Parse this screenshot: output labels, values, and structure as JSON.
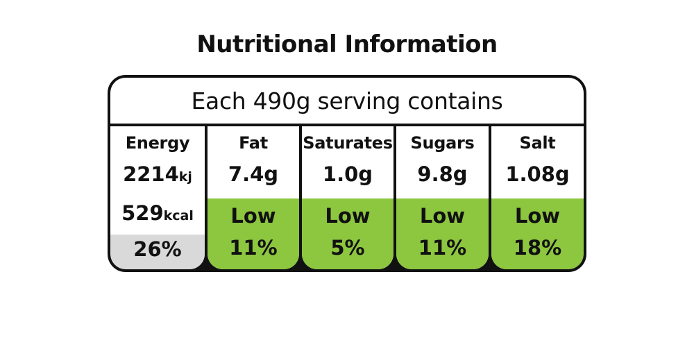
{
  "title": "Nutritional Information",
  "serving_header": "Each 490g serving contains",
  "colors": {
    "low": "#8dc63f",
    "energy_ri_bg": "#d9d9d9",
    "border": "#111111"
  },
  "energy": {
    "name": "Energy",
    "kj_value": "2214",
    "kj_unit": "kj",
    "kcal_value": "529",
    "kcal_unit": "kcal",
    "ri": "26%"
  },
  "nutrients": [
    {
      "name": "Fat",
      "amount": "7.4g",
      "level": "Low",
      "ri": "11%"
    },
    {
      "name": "Saturates",
      "amount": "1.0g",
      "level": "Low",
      "ri": "5%"
    },
    {
      "name": "Sugars",
      "amount": "9.8g",
      "level": "Low",
      "ri": "11%"
    },
    {
      "name": "Salt",
      "amount": "1.08g",
      "level": "Low",
      "ri": "18%"
    }
  ]
}
